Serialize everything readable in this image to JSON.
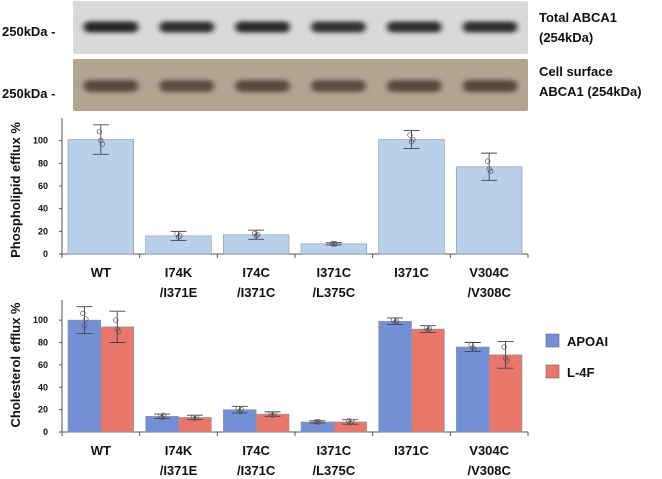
{
  "blots": [
    {
      "marker": "250kDa -",
      "caption_lines": [
        "Total ABCA1",
        "(254kDa)"
      ],
      "colors": {
        "background": "#d9d9d9",
        "band": "#1c1c1c"
      },
      "band_intensity": [
        0.95,
        0.9,
        0.92,
        0.88,
        0.9,
        0.9
      ]
    },
    {
      "marker": "250kDa -",
      "caption_lines": [
        "Cell surface",
        "ABCA1 (254kDa)"
      ],
      "colors": {
        "background": "#b3a492",
        "band": "#4a3a30"
      },
      "band_intensity": [
        0.85,
        0.82,
        0.85,
        0.82,
        0.85,
        0.88
      ]
    }
  ],
  "legend": [
    {
      "label": "APOAI",
      "color": "#7390d6"
    },
    {
      "label": "L-4F",
      "color": "#e8766a"
    }
  ],
  "chart_data": [
    {
      "type": "bar",
      "ylabel": "Phospholipid efflux %",
      "ylim": [
        0,
        120
      ],
      "yticks": [
        0,
        20,
        40,
        60,
        80,
        100
      ],
      "categories": [
        "WT",
        "I74K /I371E",
        "I74C /I371C",
        "I371C /L375C",
        "I371C",
        "V304C /V308C"
      ],
      "category_lines": [
        [
          "WT"
        ],
        [
          "I74K",
          "/I371E"
        ],
        [
          "I74C",
          "/I371C"
        ],
        [
          "I371C",
          "/L375C"
        ],
        [
          "I371C"
        ],
        [
          "V304C",
          "/V308C"
        ]
      ],
      "series": [
        {
          "color": "#b9d0ea",
          "values": [
            101,
            16,
            17,
            9,
            101,
            77
          ],
          "errors": [
            13,
            4,
            4,
            1,
            8,
            12
          ],
          "points": [
            [
              108,
              100,
              97
            ],
            [
              18,
              15,
              16
            ],
            [
              18,
              16,
              17
            ],
            [
              9,
              9,
              9
            ],
            [
              105,
              99,
              101
            ],
            [
              82,
              75,
              73
            ]
          ]
        }
      ],
      "grid": false
    },
    {
      "type": "bar",
      "ylabel": "Cholesterol efflux %",
      "ylim": [
        0,
        118
      ],
      "yticks": [
        0,
        20,
        40,
        60,
        80,
        100
      ],
      "categories": [
        "WT",
        "I74K /I371E",
        "I74C /I371C",
        "I371C /L375C",
        "I371C",
        "V304C /V308C"
      ],
      "category_lines": [
        [
          "WT"
        ],
        [
          "I74K",
          "/I371E"
        ],
        [
          "I74C",
          "/I371C"
        ],
        [
          "I371C",
          "/L375C"
        ],
        [
          "I371C"
        ],
        [
          "V304C",
          "/V308C"
        ]
      ],
      "series": [
        {
          "name": "APOAI",
          "color": "#7390d6",
          "values": [
            100,
            14,
            20,
            9,
            99,
            76
          ],
          "errors": [
            12,
            2,
            3,
            1,
            3,
            4
          ],
          "points": [
            [
              106,
              95,
              101
            ],
            [
              14,
              13,
              15
            ],
            [
              21,
              18,
              20
            ],
            [
              9,
              9,
              9
            ],
            [
              100,
              98,
              99
            ],
            [
              78,
              75,
              74
            ]
          ]
        },
        {
          "name": "L-4F",
          "color": "#e8766a",
          "values": [
            94,
            13,
            16,
            9,
            92,
            69
          ],
          "errors": [
            14,
            2,
            2,
            2,
            3,
            12
          ],
          "points": [
            [
              100,
              92,
              90
            ],
            [
              13,
              12,
              13
            ],
            [
              16,
              15,
              16
            ],
            [
              10,
              8,
              9
            ],
            [
              93,
              91,
              92
            ],
            [
              76,
              66,
              64
            ]
          ]
        }
      ],
      "grid": false,
      "legend_position": "right"
    }
  ]
}
